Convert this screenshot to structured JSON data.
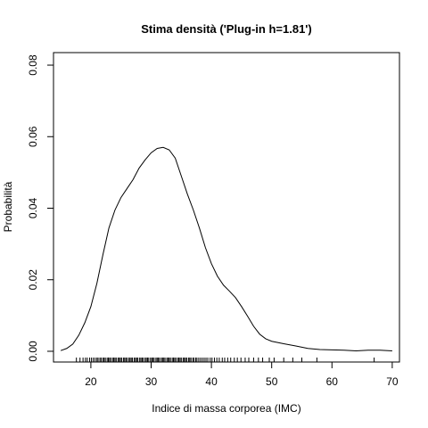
{
  "chart_data": {
    "type": "line",
    "title": "Stima densità ('Plug-in h=1.81')",
    "xlabel": "Indice di massa corporea (IMC)",
    "ylabel": "Probabilità",
    "xlim": [
      13.8,
      71.2
    ],
    "ylim": [
      -0.003,
      0.0835
    ],
    "x_ticks": [
      20,
      30,
      40,
      50,
      60,
      70
    ],
    "y_ticks": [
      0.0,
      0.02,
      0.04,
      0.06,
      0.08
    ],
    "y_tick_labels": [
      "0.00",
      "0.02",
      "0.04",
      "0.06",
      "0.08"
    ],
    "grid": false,
    "series": [
      {
        "x": [
          15,
          16,
          17,
          18,
          19,
          20,
          21,
          22,
          23,
          24,
          25,
          26,
          27,
          28,
          29,
          30,
          31,
          32,
          33,
          34,
          35,
          36,
          37,
          38,
          39,
          40,
          41,
          42,
          43,
          44,
          45,
          46,
          47,
          48,
          49,
          50,
          52,
          54,
          56,
          58,
          60,
          62,
          64,
          66,
          68,
          70
        ],
        "y": [
          0.0002,
          0.0008,
          0.002,
          0.0045,
          0.008,
          0.0125,
          0.019,
          0.027,
          0.0345,
          0.0395,
          0.043,
          0.0455,
          0.048,
          0.0512,
          0.0535,
          0.0555,
          0.0567,
          0.057,
          0.0563,
          0.054,
          0.049,
          0.044,
          0.0395,
          0.0345,
          0.029,
          0.0245,
          0.021,
          0.0185,
          0.0168,
          0.015,
          0.0125,
          0.0098,
          0.007,
          0.0048,
          0.0035,
          0.0028,
          0.0021,
          0.0015,
          0.0008,
          0.0005,
          0.0004,
          0.0003,
          0.0001,
          0.0003,
          0.0003,
          0.0001
        ],
        "color": "#000000"
      }
    ],
    "rug_x": [
      17.6,
      18.2,
      18.7,
      19.1,
      19.4,
      19.8,
      20.1,
      20.4,
      20.7,
      21.0,
      21.2,
      21.5,
      21.7,
      22.0,
      22.2,
      22.4,
      22.7,
      22.9,
      23.1,
      23.3,
      23.6,
      23.8,
      24.0,
      24.2,
      24.5,
      24.7,
      24.9,
      25.1,
      25.4,
      25.6,
      25.8,
      26.0,
      26.3,
      26.5,
      26.7,
      26.9,
      27.2,
      27.4,
      27.6,
      27.8,
      28.1,
      28.3,
      28.5,
      28.7,
      29.0,
      29.2,
      29.4,
      29.6,
      29.9,
      30.1,
      30.3,
      30.5,
      30.8,
      31.0,
      31.2,
      31.4,
      31.7,
      31.9,
      32.1,
      32.3,
      32.6,
      32.8,
      33.0,
      33.2,
      33.5,
      33.7,
      33.9,
      34.1,
      34.4,
      34.6,
      34.8,
      35.0,
      35.3,
      35.5,
      35.7,
      35.9,
      36.2,
      36.4,
      36.6,
      36.9,
      37.1,
      37.4,
      37.6,
      37.9,
      38.2,
      38.5,
      38.8,
      39.1,
      39.4,
      39.8,
      40.1,
      40.5,
      40.9,
      41.3,
      41.8,
      42.2,
      42.7,
      43.2,
      43.8,
      44.3,
      44.9,
      45.6,
      46.2,
      47.0,
      47.8,
      48.5,
      49.6,
      50.4,
      52.0,
      53.5,
      55.0,
      57.5,
      67.0
    ]
  }
}
